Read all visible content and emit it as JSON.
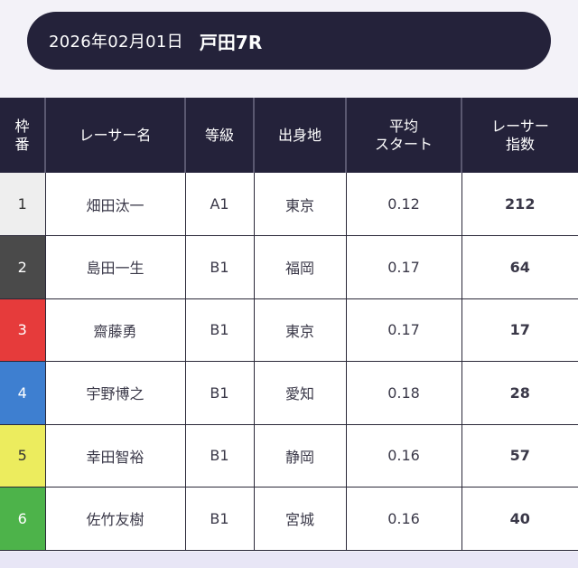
{
  "header": {
    "date": "2026年02月01日",
    "race": "戸田7R"
  },
  "table": {
    "columns": [
      {
        "line1": "枠",
        "line2": "番"
      },
      {
        "line1": "レーサー名",
        "line2": ""
      },
      {
        "line1": "等級",
        "line2": ""
      },
      {
        "line1": "出身地",
        "line2": ""
      },
      {
        "line1": "平均",
        "line2": "スタート"
      },
      {
        "line1": "レーサー",
        "line2": "指数"
      }
    ],
    "rows": [
      {
        "waku": "1",
        "waku_color": "#eeeeee",
        "waku_text_color": "#333333",
        "name": "畑田汰一",
        "grade": "A1",
        "hometown": "東京",
        "avg_start": "0.12",
        "score": "212"
      },
      {
        "waku": "2",
        "waku_color": "#4a4a4a",
        "waku_text_color": "#ffffff",
        "name": "島田一生",
        "grade": "B1",
        "hometown": "福岡",
        "avg_start": "0.17",
        "score": "64"
      },
      {
        "waku": "3",
        "waku_color": "#e63b3b",
        "waku_text_color": "#ffffff",
        "name": "齋藤勇",
        "grade": "B1",
        "hometown": "東京",
        "avg_start": "0.17",
        "score": "17"
      },
      {
        "waku": "4",
        "waku_color": "#3e7fd0",
        "waku_text_color": "#ffffff",
        "name": "宇野博之",
        "grade": "B1",
        "hometown": "愛知",
        "avg_start": "0.18",
        "score": "28"
      },
      {
        "waku": "5",
        "waku_color": "#ecec5e",
        "waku_text_color": "#333333",
        "name": "幸田智裕",
        "grade": "B1",
        "hometown": "静岡",
        "avg_start": "0.16",
        "score": "57"
      },
      {
        "waku": "6",
        "waku_color": "#4db34a",
        "waku_text_color": "#ffffff",
        "name": "佐竹友樹",
        "grade": "B1",
        "hometown": "宮城",
        "avg_start": "0.16",
        "score": "40"
      }
    ]
  },
  "colors": {
    "header_bg": "#24223a",
    "page_bg": "#f3f2f8"
  }
}
